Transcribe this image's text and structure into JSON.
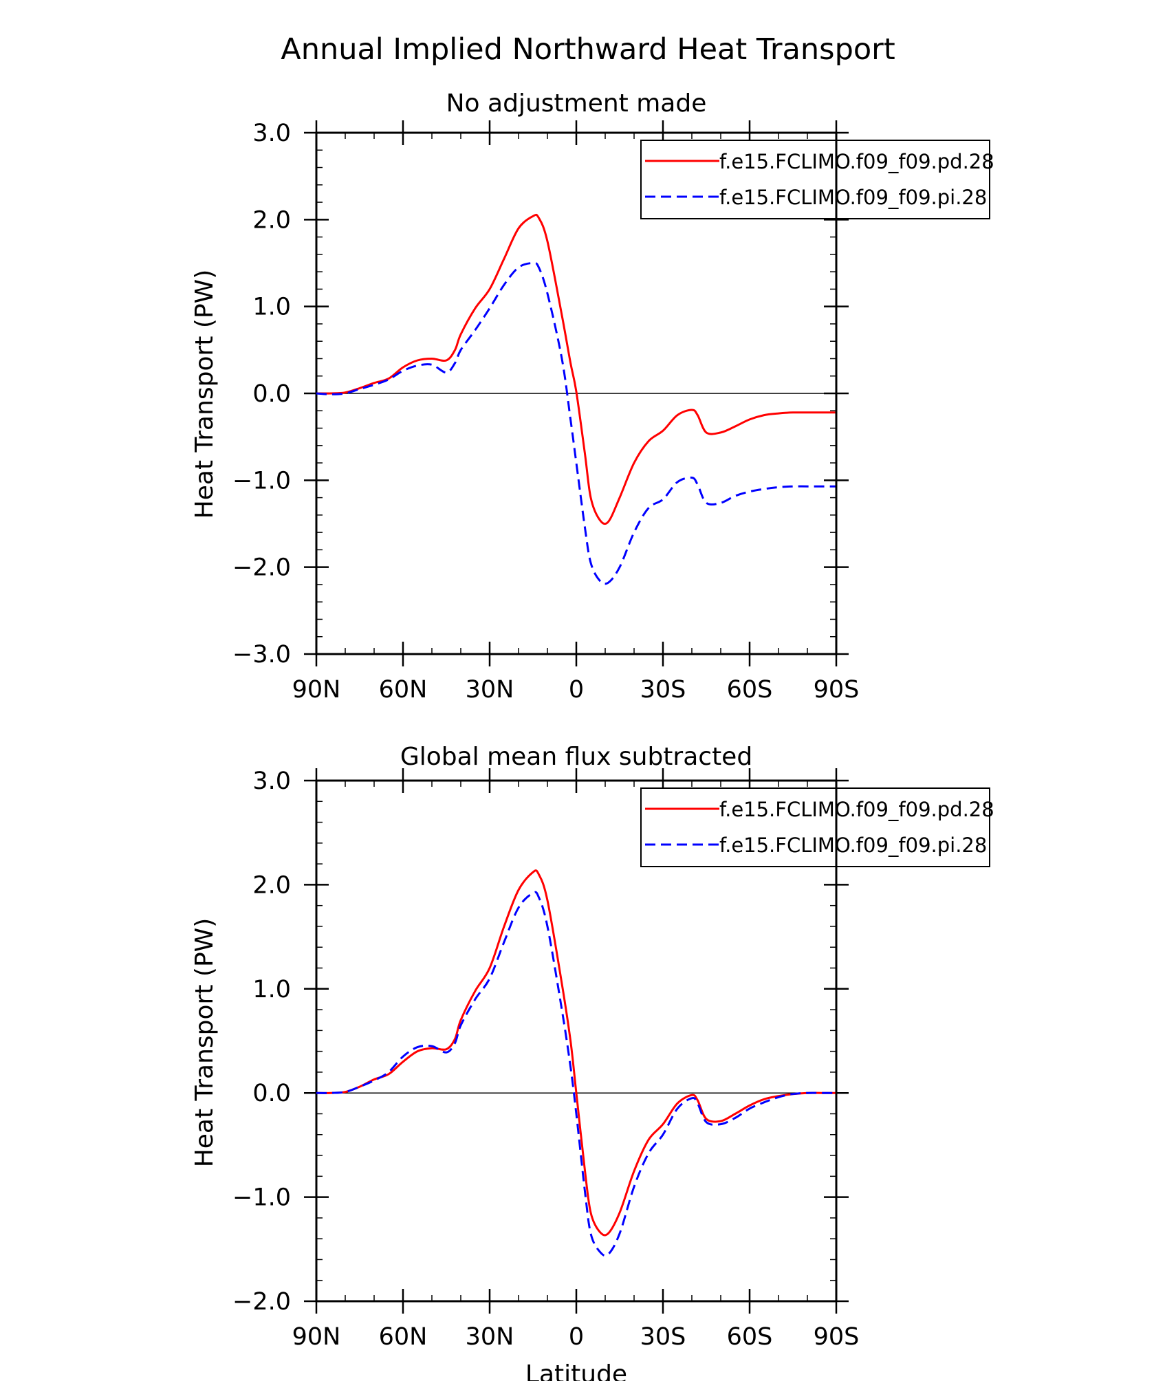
{
  "figure": {
    "title": "Annual Implied Northward Heat Transport"
  },
  "chart_data": [
    {
      "type": "line",
      "title": "No adjustment made",
      "xlabel": "",
      "ylabel": "Heat Transport (PW)",
      "xlim": [
        90,
        -90
      ],
      "ylim": [
        -3,
        3
      ],
      "x_ticks": [
        90,
        60,
        30,
        0,
        -30,
        -60,
        -90
      ],
      "x_tick_labels": [
        "90N",
        "60N",
        "30N",
        "0",
        "30S",
        "60S",
        "90S"
      ],
      "y_ticks": [
        3,
        2,
        1,
        0,
        -1,
        -2,
        -3
      ],
      "y_tick_labels": [
        "3.0",
        "2.0",
        "1.0",
        "0.0",
        "−1.0",
        "−2.0",
        "−3.0"
      ],
      "legend_position": "top-right",
      "series": [
        {
          "name": "f.e15.FCLIMO.f09_f09.pd.28",
          "color": "#ff0000",
          "dash": "solid",
          "x": [
            90,
            85,
            80,
            75,
            70,
            65,
            60,
            55,
            50,
            45,
            42,
            40,
            35,
            30,
            25,
            20,
            15,
            13,
            10,
            5,
            2,
            0,
            -3,
            -5,
            -8,
            -11,
            -15,
            -20,
            -25,
            -30,
            -35,
            -40,
            -42,
            -45,
            -50,
            -55,
            -60,
            -65,
            -70,
            -75,
            -80,
            -85,
            -90
          ],
          "y": [
            0,
            0,
            0.01,
            0.06,
            0.12,
            0.17,
            0.3,
            0.38,
            0.4,
            0.38,
            0.5,
            0.68,
            0.98,
            1.2,
            1.55,
            1.9,
            2.04,
            2.02,
            1.75,
            0.9,
            0.35,
            0.02,
            -0.7,
            -1.2,
            -1.45,
            -1.48,
            -1.2,
            -0.8,
            -0.55,
            -0.43,
            -0.25,
            -0.19,
            -0.25,
            -0.45,
            -0.45,
            -0.38,
            -0.3,
            -0.25,
            -0.23,
            -0.22,
            -0.22,
            -0.22,
            -0.22
          ]
        },
        {
          "name": "f.e15.FCLIMO.f09_f09.pi.28",
          "color": "#0000ff",
          "dash": "dashed",
          "x": [
            90,
            85,
            80,
            75,
            70,
            65,
            60,
            55,
            50,
            45,
            42,
            40,
            35,
            30,
            25,
            20,
            15,
            13,
            10,
            5,
            2,
            0,
            -3,
            -5,
            -8,
            -11,
            -15,
            -20,
            -25,
            -30,
            -35,
            -40,
            -42,
            -45,
            -50,
            -55,
            -60,
            -65,
            -70,
            -75,
            -80,
            -85,
            -90
          ],
          "y": [
            0,
            -0.01,
            0,
            0.05,
            0.1,
            0.16,
            0.26,
            0.32,
            0.33,
            0.24,
            0.35,
            0.5,
            0.73,
            0.98,
            1.25,
            1.45,
            1.5,
            1.45,
            1.15,
            0.4,
            -0.3,
            -0.8,
            -1.55,
            -1.95,
            -2.15,
            -2.18,
            -2.0,
            -1.6,
            -1.32,
            -1.22,
            -1.02,
            -0.97,
            -1.05,
            -1.26,
            -1.26,
            -1.18,
            -1.13,
            -1.1,
            -1.08,
            -1.07,
            -1.07,
            -1.07,
            -1.07
          ]
        }
      ]
    },
    {
      "type": "line",
      "title": "Global mean flux subtracted",
      "xlabel": "Latitude",
      "ylabel": "Heat Transport (PW)",
      "xlim": [
        90,
        -90
      ],
      "ylim": [
        -2,
        3
      ],
      "x_ticks": [
        90,
        60,
        30,
        0,
        -30,
        -60,
        -90
      ],
      "x_tick_labels": [
        "90N",
        "60N",
        "30N",
        "0",
        "30S",
        "60S",
        "90S"
      ],
      "y_ticks": [
        3,
        2,
        1,
        0,
        -1,
        -2
      ],
      "y_tick_labels": [
        "3.0",
        "2.0",
        "1.0",
        "0.0",
        "−1.0",
        "−2.0"
      ],
      "legend_position": "top-right",
      "series": [
        {
          "name": "f.e15.FCLIMO.f09_f09.pd.28",
          "color": "#ff0000",
          "dash": "solid",
          "x": [
            90,
            85,
            80,
            75,
            70,
            65,
            60,
            55,
            50,
            45,
            42,
            40,
            35,
            30,
            25,
            20,
            15,
            13,
            10,
            5,
            2,
            0,
            -3,
            -5,
            -8,
            -11,
            -15,
            -20,
            -25,
            -30,
            -35,
            -40,
            -42,
            -45,
            -50,
            -55,
            -60,
            -65,
            -70,
            -75,
            -80,
            -85,
            -90
          ],
          "y": [
            0,
            0,
            0.01,
            0.06,
            0.13,
            0.18,
            0.3,
            0.4,
            0.43,
            0.42,
            0.52,
            0.7,
            0.98,
            1.2,
            1.6,
            1.95,
            2.12,
            2.1,
            1.85,
            1.05,
            0.5,
            0.0,
            -0.75,
            -1.15,
            -1.33,
            -1.35,
            -1.15,
            -0.75,
            -0.45,
            -0.3,
            -0.1,
            -0.02,
            -0.07,
            -0.25,
            -0.27,
            -0.2,
            -0.12,
            -0.06,
            -0.03,
            -0.01,
            0,
            0,
            0
          ]
        },
        {
          "name": "f.e15.FCLIMO.f09_f09.pi.28",
          "color": "#0000ff",
          "dash": "dashed",
          "x": [
            90,
            85,
            80,
            75,
            70,
            65,
            60,
            55,
            50,
            45,
            42,
            40,
            35,
            30,
            25,
            20,
            15,
            13,
            10,
            5,
            2,
            0,
            -3,
            -5,
            -8,
            -11,
            -15,
            -20,
            -25,
            -30,
            -35,
            -40,
            -42,
            -45,
            -50,
            -55,
            -60,
            -65,
            -70,
            -75,
            -80,
            -85,
            -90
          ],
          "y": [
            0,
            0,
            0.01,
            0.06,
            0.12,
            0.2,
            0.35,
            0.44,
            0.45,
            0.39,
            0.48,
            0.65,
            0.9,
            1.1,
            1.45,
            1.78,
            1.92,
            1.88,
            1.6,
            0.8,
            0.25,
            -0.2,
            -0.95,
            -1.35,
            -1.52,
            -1.55,
            -1.35,
            -0.9,
            -0.58,
            -0.4,
            -0.15,
            -0.05,
            -0.1,
            -0.28,
            -0.3,
            -0.24,
            -0.15,
            -0.09,
            -0.04,
            -0.01,
            0,
            0,
            0
          ]
        }
      ]
    }
  ]
}
